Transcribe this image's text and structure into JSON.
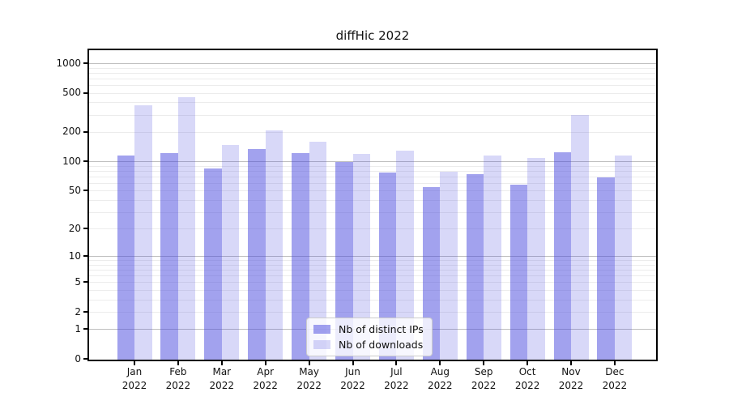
{
  "chart_data": {
    "type": "bar",
    "title": "diffHic 2022",
    "categories": [
      "Jan",
      "Feb",
      "Mar",
      "Apr",
      "May",
      "Jun",
      "Jul",
      "Aug",
      "Sep",
      "Oct",
      "Nov",
      "Dec"
    ],
    "category_year": "2022",
    "series": [
      {
        "name": "Nb of distinct IPs",
        "key": "distinct-ips",
        "color": "rgba(69,69,221,0.50)",
        "values": [
          115,
          121,
          84,
          135,
          121,
          98,
          77,
          54,
          74,
          58,
          125,
          68
        ]
      },
      {
        "name": "Nb of downloads",
        "key": "downloads",
        "color": "rgba(69,69,221,0.21)",
        "values": [
          372,
          452,
          148,
          206,
          158,
          119,
          129,
          79,
          114,
          108,
          300,
          114
        ]
      }
    ],
    "yticks": [
      0,
      1,
      2,
      5,
      10,
      20,
      50,
      100,
      200,
      500,
      1000
    ],
    "yscale": "log1p",
    "ylim": [
      0,
      1350
    ],
    "xlabel": "",
    "ylabel": "",
    "grid": true,
    "legend_position": "lower center"
  },
  "colors": {
    "grid_major": "#bfbfbf",
    "grid_minor": "#ececec",
    "axis": "#000000",
    "title_text": "#111111",
    "tick_text": "#111111",
    "legend_border": "#cccccc",
    "legend_bg": "rgba(255,255,255,0.8)"
  }
}
